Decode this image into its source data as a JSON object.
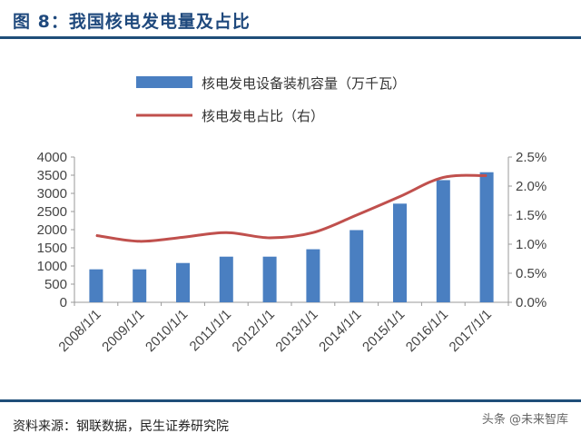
{
  "header": {
    "title": "图 8：我国核电发电量及占比"
  },
  "footer": {
    "source": "资料来源：钢联数据，民生证券研究院"
  },
  "watermark": {
    "text": "头条 @未来智库"
  },
  "colors": {
    "bar": "#4a7fc1",
    "line": "#c0504d",
    "title": "#1f497d",
    "rule": "#1f4e79",
    "axis": "#999999"
  },
  "chart_data": {
    "type": "bar",
    "title": "",
    "categories": [
      "2008/1/1",
      "2009/1/1",
      "2010/1/1",
      "2011/1/1",
      "2012/1/1",
      "2013/1/1",
      "2014/1/1",
      "2015/1/1",
      "2016/1/1",
      "2017/1/1"
    ],
    "series": [
      {
        "name": "核电发电设备装机容量（万千瓦）",
        "type": "bar",
        "axis": "left",
        "values": [
          908,
          908,
          1082,
          1257,
          1257,
          1461,
          1988,
          2717,
          3364,
          3582
        ]
      },
      {
        "name": "核电发电占比（右）",
        "type": "line",
        "axis": "right",
        "values": [
          1.15,
          1.05,
          1.12,
          1.2,
          1.11,
          1.2,
          1.5,
          1.82,
          2.15,
          2.18
        ]
      }
    ],
    "ylim": [
      0,
      4000
    ],
    "yticks": [
      0,
      500,
      1000,
      1500,
      2000,
      2500,
      3000,
      3500,
      4000
    ],
    "ylim_right": [
      0,
      2.5
    ],
    "yticks_right": [
      "0.0%",
      "0.5%",
      "1.0%",
      "1.5%",
      "2.0%",
      "2.5%"
    ],
    "legend_position": "top",
    "grid": false
  }
}
